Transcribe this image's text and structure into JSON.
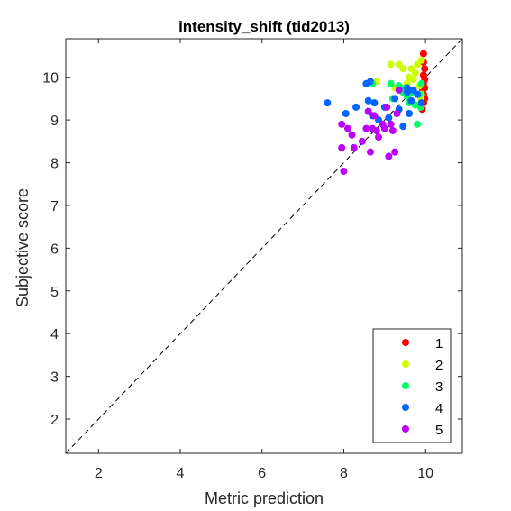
{
  "chart_data": {
    "type": "scatter",
    "title": "intensity_shift (tid2013)",
    "xlabel": "Metric prediction",
    "ylabel": "Subjective score",
    "xlim": [
      1.2,
      10.9
    ],
    "ylim": [
      1.2,
      10.9
    ],
    "xticks": [
      2,
      4,
      6,
      8,
      10
    ],
    "yticks": [
      2,
      3,
      4,
      5,
      6,
      7,
      8,
      9,
      10
    ],
    "grid": false,
    "legend_position": "bottom-right",
    "reference_line": "y = x (dashed)",
    "series": [
      {
        "name": "1",
        "color": "#ff0000",
        "points": [
          [
            9.95,
            10.55
          ],
          [
            9.95,
            10.35
          ],
          [
            9.98,
            10.2
          ],
          [
            9.95,
            10.05
          ],
          [
            9.98,
            9.95
          ],
          [
            9.95,
            9.85
          ],
          [
            9.98,
            9.75
          ],
          [
            9.95,
            9.6
          ],
          [
            9.98,
            9.5
          ],
          [
            9.95,
            9.4
          ],
          [
            9.92,
            9.25
          ],
          [
            9.9,
            9.55
          ],
          [
            9.93,
            9.7
          ]
        ]
      },
      {
        "name": "2",
        "color": "#ccff00",
        "points": [
          [
            8.8,
            9.9
          ],
          [
            9.15,
            10.3
          ],
          [
            9.35,
            10.3
          ],
          [
            9.45,
            10.2
          ],
          [
            9.6,
            10.0
          ],
          [
            9.7,
            9.95
          ],
          [
            9.8,
            10.3
          ],
          [
            9.75,
            10.1
          ],
          [
            9.85,
            9.8
          ],
          [
            9.9,
            9.6
          ],
          [
            9.25,
            9.75
          ],
          [
            9.55,
            9.85
          ],
          [
            9.65,
            10.2
          ],
          [
            9.9,
            10.4
          ],
          [
            9.88,
            9.5
          ]
        ]
      },
      {
        "name": "3",
        "color": "#00ff66",
        "points": [
          [
            8.7,
            9.85
          ],
          [
            9.15,
            9.85
          ],
          [
            9.2,
            9.5
          ],
          [
            9.35,
            9.8
          ],
          [
            9.45,
            9.65
          ],
          [
            9.55,
            9.55
          ],
          [
            9.65,
            9.45
          ],
          [
            9.7,
            9.7
          ],
          [
            9.75,
            9.35
          ],
          [
            9.8,
            8.9
          ],
          [
            9.85,
            9.6
          ],
          [
            9.6,
            9.4
          ],
          [
            9.5,
            9.75
          ],
          [
            9.9,
            9.85
          ],
          [
            9.88,
            9.3
          ],
          [
            9.65,
            9.65
          ]
        ]
      },
      {
        "name": "4",
        "color": "#0066ff",
        "points": [
          [
            7.6,
            9.4
          ],
          [
            8.05,
            9.15
          ],
          [
            8.3,
            9.3
          ],
          [
            8.55,
            9.85
          ],
          [
            8.65,
            9.9
          ],
          [
            8.6,
            9.45
          ],
          [
            8.75,
            9.4
          ],
          [
            8.7,
            9.1
          ],
          [
            8.85,
            9.0
          ],
          [
            9.0,
            9.3
          ],
          [
            9.1,
            9.05
          ],
          [
            9.25,
            9.5
          ],
          [
            9.35,
            9.25
          ],
          [
            9.45,
            8.85
          ],
          [
            9.55,
            9.65
          ],
          [
            9.65,
            9.45
          ],
          [
            9.7,
            9.7
          ],
          [
            9.8,
            9.6
          ],
          [
            9.9,
            9.4
          ],
          [
            9.6,
            9.15
          ],
          [
            9.55,
            9.75
          ]
        ]
      },
      {
        "name": "5",
        "color": "#bb00ff",
        "points": [
          [
            8.0,
            7.8
          ],
          [
            7.95,
            8.35
          ],
          [
            8.25,
            8.35
          ],
          [
            7.95,
            8.9
          ],
          [
            8.1,
            8.8
          ],
          [
            8.2,
            8.65
          ],
          [
            8.45,
            8.5
          ],
          [
            8.55,
            8.8
          ],
          [
            8.65,
            8.25
          ],
          [
            8.7,
            8.8
          ],
          [
            8.8,
            8.75
          ],
          [
            8.75,
            9.1
          ],
          [
            8.85,
            8.6
          ],
          [
            9.0,
            8.8
          ],
          [
            9.05,
            9.3
          ],
          [
            9.1,
            8.15
          ],
          [
            9.2,
            8.75
          ],
          [
            9.25,
            8.25
          ],
          [
            9.3,
            9.15
          ],
          [
            9.35,
            9.7
          ],
          [
            9.15,
            8.9
          ],
          [
            8.95,
            8.9
          ],
          [
            8.6,
            9.2
          ]
        ]
      }
    ]
  }
}
